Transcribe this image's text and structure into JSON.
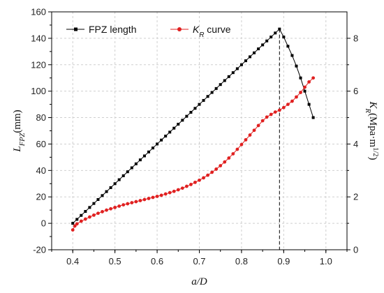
{
  "chart_data": {
    "type": "line",
    "x_label_parts": [
      {
        "text": "a/D",
        "italic": true,
        "sub": false
      }
    ],
    "y_left_label_parts": [
      {
        "text": "L",
        "italic": true,
        "sub": false
      },
      {
        "text": "FPZ",
        "italic": true,
        "sub": true
      },
      {
        "text": "(mm)",
        "italic": false,
        "sub": false
      }
    ],
    "y_right_label_parts": [
      {
        "text": "K",
        "italic": true,
        "sub": false
      },
      {
        "text": "R",
        "italic": true,
        "sub": true
      },
      {
        "text": "(Mpa·m",
        "italic": false,
        "sub": false
      },
      {
        "text": "1/2",
        "italic": false,
        "sub": false,
        "sup": true
      },
      {
        "text": ")",
        "italic": false,
        "sub": false
      }
    ],
    "xlim": [
      0.35,
      1.05
    ],
    "ylim_left": [
      -20,
      160
    ],
    "ylim_right": [
      0,
      9
    ],
    "x_ticks": [
      "0.4",
      "0.5",
      "0.6",
      "0.7",
      "0.8",
      "0.9",
      "1.0"
    ],
    "y_left_ticks": [
      "-20",
      "0",
      "20",
      "40",
      "60",
      "80",
      "100",
      "120",
      "140",
      "160"
    ],
    "y_right_ticks": [
      "0",
      "2",
      "4",
      "6",
      "8"
    ],
    "grid": true,
    "legend_placement": "top-left",
    "reference_line_x": 0.89,
    "series": [
      {
        "name": "FPZ length",
        "axis": "left",
        "color": "#000000",
        "marker": "square",
        "x": [
          0.4,
          0.41,
          0.42,
          0.43,
          0.44,
          0.45,
          0.46,
          0.47,
          0.48,
          0.49,
          0.5,
          0.51,
          0.52,
          0.53,
          0.54,
          0.55,
          0.56,
          0.57,
          0.58,
          0.59,
          0.6,
          0.61,
          0.62,
          0.63,
          0.64,
          0.65,
          0.66,
          0.67,
          0.68,
          0.69,
          0.7,
          0.71,
          0.72,
          0.73,
          0.74,
          0.75,
          0.76,
          0.77,
          0.78,
          0.79,
          0.8,
          0.81,
          0.82,
          0.83,
          0.84,
          0.85,
          0.86,
          0.87,
          0.88,
          0.89,
          0.9,
          0.91,
          0.92,
          0.93,
          0.94,
          0.95,
          0.96,
          0.97
        ],
        "y": [
          0,
          3,
          6,
          9,
          12,
          15,
          18,
          21,
          24,
          27,
          30,
          33,
          36,
          39,
          42,
          45,
          48,
          51,
          54,
          57,
          60,
          63,
          66,
          69,
          72,
          75,
          78,
          81,
          84,
          87,
          90,
          93,
          96,
          99,
          102,
          105,
          108,
          111,
          114,
          117,
          120,
          123,
          126,
          129,
          132,
          135,
          138,
          141,
          144,
          147,
          141,
          134,
          127,
          119,
          110,
          100,
          90,
          80
        ]
      },
      {
        "name": "K_R curve",
        "axis": "right",
        "color": "#e02020",
        "marker": "circle",
        "x": [
          0.4,
          0.405,
          0.41,
          0.42,
          0.43,
          0.44,
          0.45,
          0.46,
          0.47,
          0.48,
          0.49,
          0.5,
          0.51,
          0.52,
          0.53,
          0.54,
          0.55,
          0.56,
          0.57,
          0.58,
          0.59,
          0.6,
          0.61,
          0.62,
          0.63,
          0.64,
          0.65,
          0.66,
          0.67,
          0.68,
          0.69,
          0.7,
          0.71,
          0.72,
          0.73,
          0.74,
          0.75,
          0.76,
          0.77,
          0.78,
          0.79,
          0.8,
          0.81,
          0.82,
          0.83,
          0.84,
          0.85,
          0.86,
          0.87,
          0.88,
          0.89,
          0.9,
          0.91,
          0.92,
          0.93,
          0.94,
          0.95,
          0.96,
          0.97
        ],
        "y": [
          0.75,
          0.9,
          0.98,
          1.08,
          1.16,
          1.24,
          1.31,
          1.38,
          1.44,
          1.5,
          1.55,
          1.6,
          1.65,
          1.7,
          1.74,
          1.78,
          1.82,
          1.86,
          1.9,
          1.94,
          1.98,
          2.02,
          2.06,
          2.11,
          2.16,
          2.21,
          2.27,
          2.33,
          2.4,
          2.47,
          2.55,
          2.63,
          2.72,
          2.82,
          2.93,
          3.05,
          3.18,
          3.32,
          3.47,
          3.63,
          3.8,
          3.98,
          4.16,
          4.34,
          4.52,
          4.7,
          4.88,
          5.02,
          5.12,
          5.21,
          5.28,
          5.38,
          5.5,
          5.62,
          5.78,
          5.95,
          6.15,
          6.35,
          6.5
        ]
      }
    ]
  },
  "legend": {
    "items": [
      {
        "series": "FPZ length",
        "parts": [
          {
            "text": "FPZ length",
            "italic": false,
            "sub": false
          }
        ]
      },
      {
        "series": "K_R curve",
        "parts": [
          {
            "text": "K",
            "italic": true,
            "sub": false
          },
          {
            "text": "R",
            "italic": true,
            "sub": true
          },
          {
            "text": " curve",
            "italic": false,
            "sub": false
          }
        ]
      }
    ]
  }
}
